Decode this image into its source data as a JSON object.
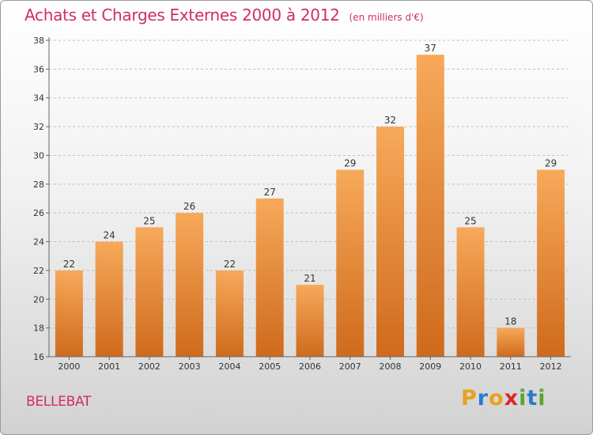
{
  "header": {
    "title": "Achats et Charges Externes 2000 à 2012",
    "subtitle": "(en milliers d'€)"
  },
  "footer": {
    "commune": "BELLEBAT",
    "logo": {
      "letters": [
        "P",
        "r",
        "o",
        "x",
        "i",
        "t",
        "i"
      ],
      "colors": [
        "#e7a21c",
        "#2a7bd0",
        "#e7a21c",
        "#d8262f",
        "#5aa532",
        "#2a7bd0",
        "#5aa532"
      ]
    }
  },
  "colors": {
    "bar_light": "#f7a95a",
    "bar_dark": "#cf6a1c",
    "title": "#cf2f5c",
    "grid": "#bfbfbf",
    "axis": "#666666"
  },
  "chart_data": {
    "type": "bar",
    "categories": [
      "2000",
      "2001",
      "2002",
      "2003",
      "2004",
      "2005",
      "2006",
      "2007",
      "2008",
      "2009",
      "2010",
      "2011",
      "2012"
    ],
    "values": [
      22,
      24,
      25,
      26,
      22,
      27,
      21,
      29,
      32,
      37,
      25,
      18,
      29
    ],
    "title": "Achats et Charges Externes 2000 à 2012",
    "subtitle": "(en milliers d'€)",
    "xlabel": "",
    "ylabel": "",
    "ylim": [
      16,
      38
    ],
    "yticks": [
      16,
      18,
      20,
      22,
      24,
      26,
      28,
      30,
      32,
      34,
      36,
      38
    ],
    "grid": "horizontal dashed",
    "data_labels": true
  }
}
